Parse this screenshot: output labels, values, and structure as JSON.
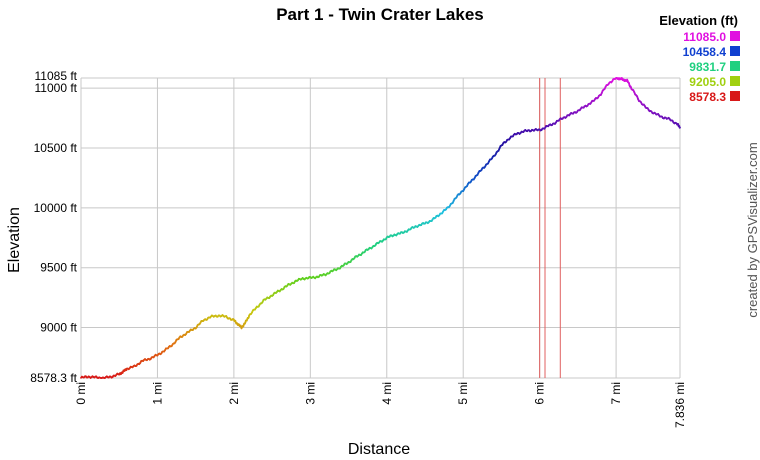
{
  "chart_data": {
    "type": "line",
    "title": "Part 1 - Twin Crater Lakes",
    "xlabel": "Distance",
    "ylabel": "Elevation",
    "xlim": [
      0,
      7.836
    ],
    "ylim": [
      8578.3,
      11085
    ],
    "x_ticks": [
      {
        "value": 0,
        "label": "0 mi"
      },
      {
        "value": 1,
        "label": "1 mi"
      },
      {
        "value": 2,
        "label": "2 mi"
      },
      {
        "value": 3,
        "label": "3 mi"
      },
      {
        "value": 4,
        "label": "4 mi"
      },
      {
        "value": 5,
        "label": "5 mi"
      },
      {
        "value": 6,
        "label": "6 mi"
      },
      {
        "value": 7,
        "label": "7 mi"
      },
      {
        "value": 7.836,
        "label": "7.836 mi"
      }
    ],
    "y_ticks": [
      {
        "value": 8578.3,
        "label": "8578.3 ft"
      },
      {
        "value": 9000,
        "label": "9000 ft"
      },
      {
        "value": 9500,
        "label": "9500 ft"
      },
      {
        "value": 10000,
        "label": "10000 ft"
      },
      {
        "value": 10500,
        "label": "10500 ft"
      },
      {
        "value": 11000,
        "label": "11000 ft"
      },
      {
        "value": 11085,
        "label": "11085 ft"
      }
    ],
    "grid": true,
    "markers_x": [
      6.0,
      6.07,
      6.27
    ],
    "series": [
      {
        "x": [
          0,
          0.1,
          0.2,
          0.3,
          0.4,
          0.5,
          0.55,
          0.6,
          0.7,
          0.8,
          0.9,
          1.0,
          1.1,
          1.2,
          1.3,
          1.4,
          1.5,
          1.6,
          1.7,
          1.8,
          1.9,
          2.0,
          2.05,
          2.1,
          2.15,
          2.2,
          2.3,
          2.4,
          2.5,
          2.6,
          2.7,
          2.8,
          2.9,
          3.0,
          3.1,
          3.2,
          3.3,
          3.4,
          3.5,
          3.6,
          3.7,
          3.8,
          3.9,
          4.0,
          4.1,
          4.2,
          4.3,
          4.4,
          4.5,
          4.6,
          4.7,
          4.8,
          4.9,
          5.0,
          5.1,
          5.2,
          5.3,
          5.4,
          5.5,
          5.6,
          5.7,
          5.8,
          5.9,
          6.0,
          6.1,
          6.2,
          6.3,
          6.4,
          6.5,
          6.6,
          6.7,
          6.8,
          6.9,
          7.0,
          7.05,
          7.1,
          7.15,
          7.2,
          7.3,
          7.4,
          7.5,
          7.6,
          7.7,
          7.8,
          7.836
        ],
        "y": [
          8580,
          8590,
          8583,
          8578.3,
          8590,
          8610,
          8630,
          8655,
          8675,
          8720,
          8740,
          8770,
          8810,
          8860,
          8920,
          8960,
          9000,
          9060,
          9090,
          9100,
          9090,
          9060,
          9030,
          9000,
          9040,
          9100,
          9170,
          9230,
          9270,
          9310,
          9350,
          9385,
          9410,
          9415,
          9425,
          9445,
          9475,
          9505,
          9545,
          9590,
          9630,
          9670,
          9710,
          9750,
          9775,
          9790,
          9820,
          9850,
          9870,
          9900,
          9950,
          10000,
          10080,
          10150,
          10220,
          10290,
          10360,
          10430,
          10520,
          10580,
          10620,
          10640,
          10650,
          10650,
          10680,
          10710,
          10750,
          10780,
          10810,
          10850,
          10890,
          10950,
          11040,
          11085,
          11080,
          11070,
          11060,
          11000,
          10900,
          10830,
          10790,
          10760,
          10740,
          10700,
          10670
        ]
      }
    ],
    "legend": {
      "title": "Elevation (ft)",
      "position": "top-right",
      "items": [
        {
          "label": "11085.0",
          "color": "#e010e0"
        },
        {
          "label": "10458.4",
          "color": "#1040d0"
        },
        {
          "label": "9831.7",
          "color": "#20d080"
        },
        {
          "label": "9205.0",
          "color": "#a0d010"
        },
        {
          "label": "8578.3",
          "color": "#d81818"
        }
      ]
    },
    "color_stops": [
      "#d81818",
      "#e07010",
      "#c8c810",
      "#60d020",
      "#20d080",
      "#20c0e0",
      "#1050c8",
      "#2010a0",
      "#8010c0",
      "#e010e0"
    ]
  },
  "credit": "created by GPSVisualizer.com"
}
